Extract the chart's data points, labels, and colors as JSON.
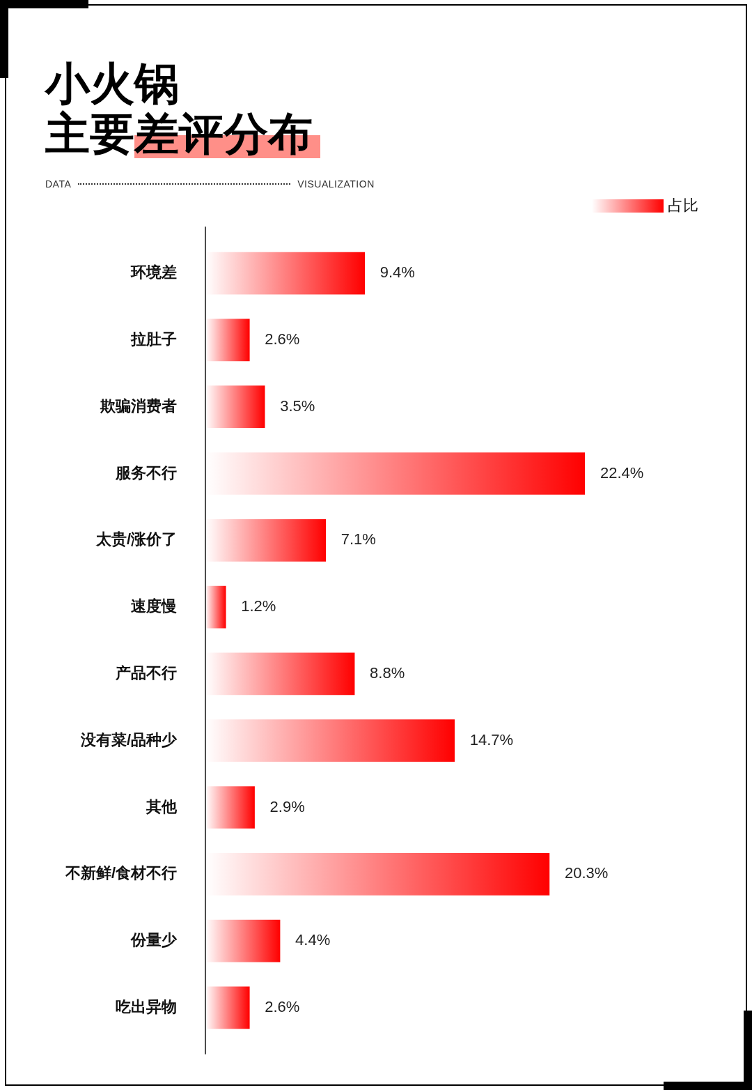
{
  "chart_data": {
    "type": "bar",
    "orientation": "horizontal",
    "title": "小火锅",
    "subtitle": "主要差评分布",
    "annotations": [
      "DATA",
      "VISUALIZATION"
    ],
    "categories": [
      "环境差",
      "拉肚子",
      "欺骗消费者",
      "服务不行",
      "太贵/涨价了",
      "速度慢",
      "产品不行",
      "没有菜/品种少",
      "其他",
      "不新鲜/食材不行",
      "份量少",
      "吃出异物"
    ],
    "series": [
      {
        "name": "占比",
        "color": "#ff0000",
        "values": [
          9.4,
          2.6,
          3.5,
          22.4,
          7.1,
          1.2,
          8.8,
          14.7,
          2.9,
          20.3,
          4.4,
          2.6
        ],
        "value_labels": [
          "9.4%",
          "2.6%",
          "3.5%",
          "22.4%",
          "7.1%",
          "1.2%",
          "8.8%",
          "14.7%",
          "2.9%",
          "20.3%",
          "4.4%",
          "2.6%"
        ]
      }
    ],
    "tick_labels": "y",
    "legend": "top right"
  }
}
